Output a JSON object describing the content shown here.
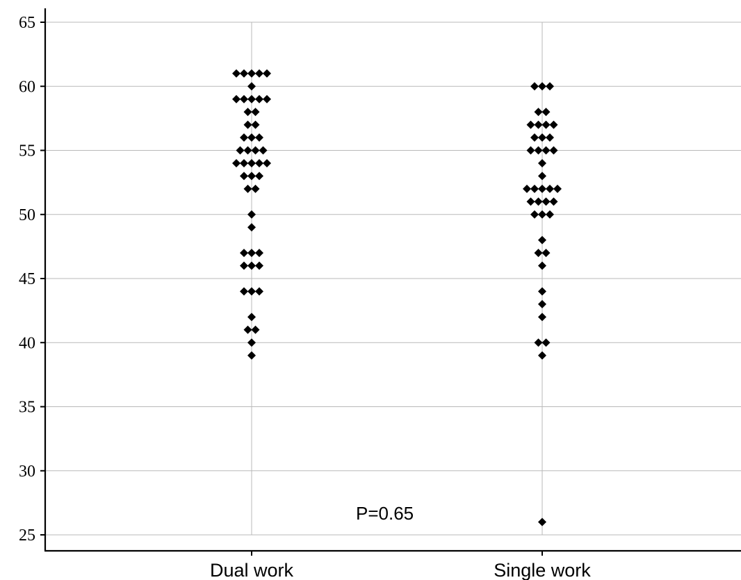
{
  "chart_data": {
    "type": "scatter",
    "title": "",
    "xlabel": "",
    "ylabel": "",
    "ylim": [
      25,
      65
    ],
    "yticks": [
      25,
      30,
      35,
      40,
      45,
      50,
      55,
      60,
      65
    ],
    "grid": true,
    "categories": [
      "Dual work",
      "Single work"
    ],
    "series": [
      {
        "category": "Dual work",
        "values": [
          39,
          40,
          41,
          41,
          42,
          44,
          44,
          44,
          46,
          46,
          46,
          47,
          47,
          47,
          49,
          50,
          52,
          52,
          53,
          53,
          53,
          54,
          54,
          54,
          54,
          54,
          55,
          55,
          55,
          55,
          56,
          56,
          56,
          57,
          57,
          58,
          58,
          59,
          59,
          59,
          59,
          59,
          60,
          61,
          61,
          61,
          61,
          61
        ]
      },
      {
        "category": "Single work",
        "values": [
          26,
          39,
          40,
          40,
          42,
          43,
          44,
          46,
          47,
          47,
          48,
          50,
          50,
          50,
          51,
          51,
          51,
          51,
          52,
          52,
          52,
          52,
          52,
          53,
          54,
          55,
          55,
          55,
          55,
          56,
          56,
          56,
          57,
          57,
          57,
          57,
          58,
          58,
          60,
          60,
          60
        ]
      }
    ],
    "annotations": [
      "P=0.65"
    ]
  }
}
